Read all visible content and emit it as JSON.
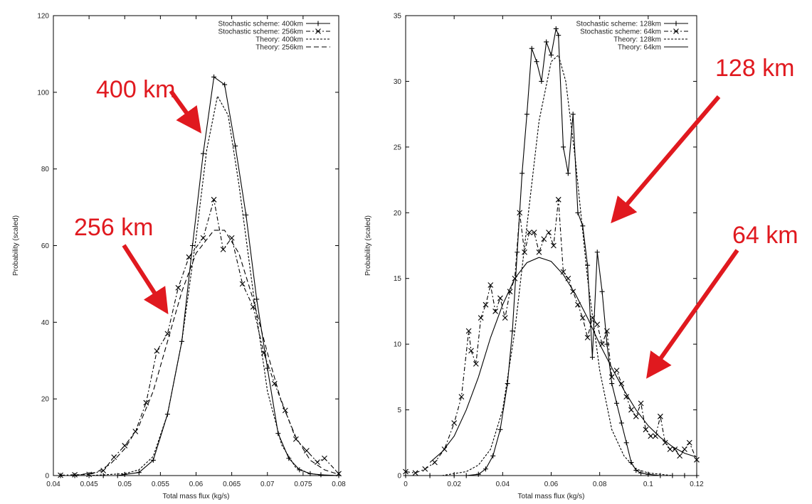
{
  "chart_data": [
    {
      "type": "line",
      "xlabel": "Total mass flux (kg/s)",
      "ylabel": "Probability (scaled)",
      "xlim": [
        0.04,
        0.08
      ],
      "ylim": [
        0,
        120
      ],
      "xticks": [
        "0.04",
        "0.045",
        "0.05",
        "0.055",
        "0.06",
        "0.065",
        "0.07",
        "0.075",
        "0.08"
      ],
      "yticks": [
        "0",
        "20",
        "40",
        "60",
        "80",
        "100",
        "120"
      ],
      "legend_position": "top-right",
      "series": [
        {
          "name": "Stochastic scheme: 400km",
          "style": "solid",
          "marker": "plus",
          "x": [
            0.041,
            0.043,
            0.045,
            0.047,
            0.049,
            0.05,
            0.052,
            0.054,
            0.056,
            0.058,
            0.0595,
            0.061,
            0.0625,
            0.064,
            0.0655,
            0.067,
            0.0685,
            0.07,
            0.0715,
            0.073,
            0.0745,
            0.076,
            0.0775,
            0.08
          ],
          "y": [
            0,
            0,
            0,
            0,
            0,
            0.3,
            0.8,
            4,
            16,
            35,
            60,
            84,
            104,
            102,
            86,
            68,
            46,
            28,
            11,
            4.5,
            1.5,
            0.5,
            0.2,
            0
          ]
        },
        {
          "name": "Stochastic scheme: 256km",
          "style": "dashdot",
          "marker": "x",
          "x": [
            0.041,
            0.043,
            0.045,
            0.047,
            0.0485,
            0.05,
            0.0515,
            0.053,
            0.0545,
            0.056,
            0.0575,
            0.059,
            0.061,
            0.0625,
            0.0638,
            0.065,
            0.0665,
            0.068,
            0.0695,
            0.071,
            0.0725,
            0.074,
            0.0755,
            0.077,
            0.078,
            0.08
          ],
          "y": [
            0.1,
            0.2,
            0.3,
            1.3,
            4.8,
            7.8,
            11.5,
            19,
            32.5,
            37,
            49,
            57,
            62,
            72,
            59,
            62,
            50,
            44,
            32,
            24,
            17,
            9.5,
            6.5,
            3.5,
            4.5,
            0.5
          ]
        },
        {
          "name": "Theory: 400km",
          "style": "dotted",
          "x": [
            0.045,
            0.05,
            0.052,
            0.054,
            0.056,
            0.058,
            0.06,
            0.0615,
            0.063,
            0.0645,
            0.066,
            0.068,
            0.07,
            0.072,
            0.074,
            0.076,
            0.078,
            0.08
          ],
          "y": [
            0,
            0.5,
            1.5,
            5,
            16,
            35,
            62,
            85,
            99,
            94,
            76,
            48,
            22,
            8,
            2,
            0.5,
            0.1,
            0
          ]
        },
        {
          "name": "Theory: 256km",
          "style": "dashed",
          "x": [
            0.043,
            0.046,
            0.048,
            0.05,
            0.052,
            0.054,
            0.056,
            0.058,
            0.06,
            0.0625,
            0.064,
            0.066,
            0.068,
            0.07,
            0.072,
            0.074,
            0.076,
            0.078,
            0.08
          ],
          "y": [
            0.1,
            0.8,
            3,
            7,
            13,
            22,
            35,
            48,
            58,
            64,
            64,
            58,
            46,
            32,
            19,
            10,
            4,
            1.5,
            0.3
          ]
        }
      ]
    },
    {
      "type": "line",
      "xlabel": "Total mass flux (kg/s)",
      "ylabel": "Probability (scaled)",
      "xlim": [
        0,
        0.12
      ],
      "ylim": [
        0,
        35
      ],
      "xticks": [
        "0",
        "0.02",
        "0.04",
        "0.06",
        "0.08",
        "0.1",
        "0.12"
      ],
      "yticks": [
        "0",
        "5",
        "10",
        "15",
        "20",
        "25",
        "30",
        "35"
      ],
      "legend_position": "top-right",
      "series": [
        {
          "name": "Stochastic scheme: 128km",
          "style": "solid",
          "marker": "plus",
          "x": [
            0,
            0.01,
            0.02,
            0.025,
            0.03,
            0.033,
            0.036,
            0.039,
            0.042,
            0.044,
            0.046,
            0.048,
            0.05,
            0.052,
            0.054,
            0.056,
            0.058,
            0.06,
            0.062,
            0.063,
            0.065,
            0.067,
            0.069,
            0.071,
            0.073,
            0.075,
            0.077,
            0.079,
            0.081,
            0.083,
            0.085,
            0.087,
            0.089,
            0.091,
            0.093,
            0.095,
            0.097,
            0.1,
            0.105,
            0.11,
            0.115,
            0.12
          ],
          "y": [
            0,
            0,
            0,
            0,
            0.1,
            0.5,
            1.5,
            3.5,
            7,
            11,
            17,
            23,
            27.5,
            32.5,
            31.5,
            30,
            33,
            32,
            34,
            33.5,
            25,
            23,
            27.5,
            20,
            19,
            16,
            9,
            17,
            14,
            10,
            7,
            5.5,
            4,
            2.5,
            1,
            0.4,
            0.2,
            0.1,
            0,
            0,
            0,
            0
          ]
        },
        {
          "name": "Stochastic scheme: 64km",
          "style": "dashdot",
          "marker": "x",
          "x": [
            0,
            0.004,
            0.008,
            0.012,
            0.016,
            0.02,
            0.023,
            0.026,
            0.027,
            0.029,
            0.031,
            0.033,
            0.035,
            0.037,
            0.039,
            0.041,
            0.043,
            0.045,
            0.047,
            0.049,
            0.051,
            0.053,
            0.055,
            0.057,
            0.059,
            0.061,
            0.063,
            0.065,
            0.067,
            0.069,
            0.071,
            0.073,
            0.075,
            0.077,
            0.079,
            0.081,
            0.083,
            0.085,
            0.087,
            0.089,
            0.091,
            0.093,
            0.095,
            0.097,
            0.099,
            0.101,
            0.103,
            0.105,
            0.107,
            0.109,
            0.111,
            0.113,
            0.115,
            0.117,
            0.12
          ],
          "y": [
            0.3,
            0.2,
            0.5,
            1,
            2,
            4,
            6,
            11,
            9.5,
            8.5,
            12,
            13,
            14.5,
            12.5,
            13.5,
            12,
            14,
            15,
            20,
            17,
            18.5,
            18.5,
            17,
            18,
            18.5,
            17.5,
            21,
            15.5,
            15,
            14,
            13,
            12,
            10.5,
            12,
            11.5,
            10,
            11,
            7.5,
            8,
            7,
            6,
            5,
            4.5,
            5.5,
            3.5,
            3,
            3,
            4.5,
            2.5,
            2,
            2,
            1.5,
            2,
            2.5,
            1.2
          ]
        },
        {
          "name": "Theory: 128km",
          "style": "dotted",
          "x": [
            0.015,
            0.025,
            0.03,
            0.035,
            0.04,
            0.045,
            0.05,
            0.055,
            0.06,
            0.063,
            0.066,
            0.07,
            0.075,
            0.08,
            0.085,
            0.09,
            0.095,
            0.1,
            0.105,
            0.11,
            0.12
          ],
          "y": [
            0,
            0.3,
            0.8,
            2,
            5,
            11,
            19,
            27,
            31.5,
            32,
            30,
            24,
            15,
            8,
            3.5,
            1.5,
            0.5,
            0.2,
            0.1,
            0,
            0
          ]
        },
        {
          "name": "Theory: 64km",
          "style": "solid",
          "x": [
            0.01,
            0.015,
            0.02,
            0.025,
            0.03,
            0.035,
            0.04,
            0.045,
            0.05,
            0.055,
            0.06,
            0.065,
            0.07,
            0.075,
            0.08,
            0.085,
            0.09,
            0.095,
            0.1,
            0.105,
            0.11,
            0.115,
            0.12
          ],
          "y": [
            1,
            1.8,
            3,
            5,
            7.5,
            10.5,
            13,
            15,
            16.2,
            16.6,
            16.3,
            15.3,
            13.8,
            12,
            10,
            8.2,
            6.5,
            5,
            3.8,
            2.9,
            2.2,
            1.7,
            1.4
          ]
        }
      ]
    }
  ],
  "annotations": {
    "left_top": "400 km",
    "left_bottom": "256 km",
    "right_top": "128 km",
    "right_bottom": "64 km"
  },
  "colors": {
    "annotation": "#e0191f",
    "axes": "#000000"
  }
}
